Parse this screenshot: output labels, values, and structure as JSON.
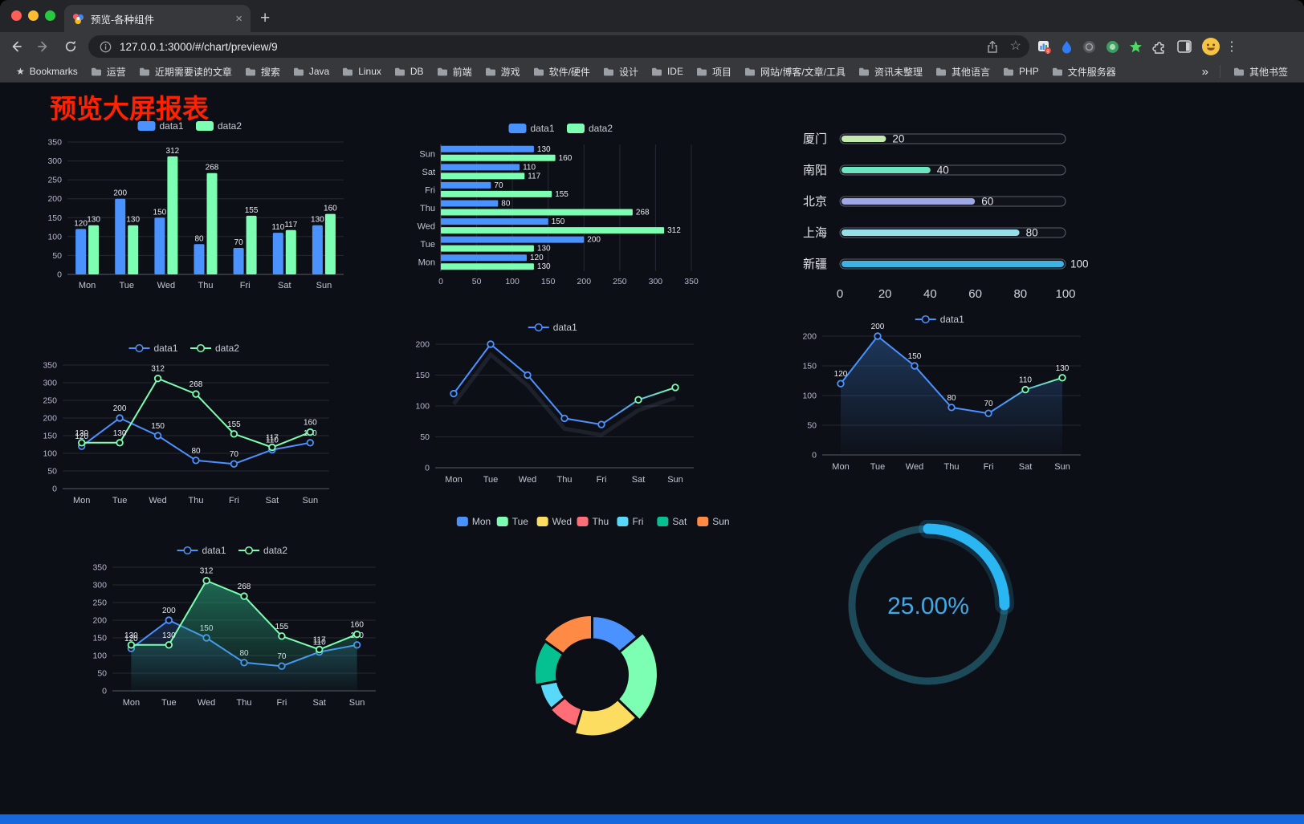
{
  "browser": {
    "tab": {
      "title": "预览-各种组件"
    },
    "icons": {
      "new_tab": "+",
      "close_tab": "×",
      "back": "←",
      "forward": "→",
      "reload": "⟳",
      "star": "☆",
      "menu": "⋮",
      "overflow": "»"
    },
    "url": "127.0.0.1:3000/#/chart/preview/9",
    "bookmarks": {
      "star_label": "Bookmarks",
      "folders": [
        "运营",
        "近期需要读的文章",
        "搜索",
        "Java",
        "Linux",
        "DB",
        "前端",
        "游戏",
        "软件/硬件",
        "设计",
        "IDE",
        "项目",
        "网站/博客/文章/工具",
        "资讯未整理",
        "其他语言",
        "PHP",
        "文件服务器"
      ],
      "other_bookmarks": "其他书签"
    }
  },
  "page": {
    "title": "预览大屏报表",
    "title_color": "#ff2200",
    "background": "#0d0f16",
    "footer_color": "#1668dd"
  },
  "chart_data": [
    {
      "type": "bar",
      "categories": [
        "Mon",
        "Tue",
        "Wed",
        "Thu",
        "Fri",
        "Sat",
        "Sun"
      ],
      "ylim": [
        0,
        350
      ],
      "ystep": 50,
      "series": [
        {
          "name": "data1",
          "color": "#4992ff",
          "values": [
            120,
            200,
            150,
            80,
            70,
            110,
            130
          ]
        },
        {
          "name": "data2",
          "color": "#7cffb2",
          "values": [
            130,
            130,
            312,
            268,
            155,
            117,
            160
          ]
        }
      ],
      "legend_position": "top"
    },
    {
      "type": "hbar",
      "categories": [
        "Mon",
        "Tue",
        "Wed",
        "Thu",
        "Fri",
        "Sat",
        "Sun"
      ],
      "xlim": [
        0,
        350
      ],
      "xstep": 50,
      "series": [
        {
          "name": "data1",
          "color": "#4992ff",
          "values": [
            120,
            200,
            150,
            80,
            70,
            110,
            130
          ]
        },
        {
          "name": "data2",
          "color": "#7cffb2",
          "values": [
            130,
            130,
            312,
            268,
            155,
            117,
            160
          ]
        }
      ],
      "legend_position": "top"
    },
    {
      "type": "capsule",
      "axis_ticks": [
        0,
        20,
        40,
        60,
        80,
        100
      ],
      "items": [
        {
          "label": "厦门",
          "value": 20,
          "color": "#c4ebad"
        },
        {
          "label": "南阳",
          "value": 40,
          "color": "#6be6c1"
        },
        {
          "label": "北京",
          "value": 60,
          "color": "#a0a7e6"
        },
        {
          "label": "上海",
          "value": 80,
          "color": "#96dee8"
        },
        {
          "label": "新疆",
          "value": 100,
          "color": "#3fb1e3"
        }
      ]
    },
    {
      "type": "line",
      "categories": [
        "Mon",
        "Tue",
        "Wed",
        "Thu",
        "Fri",
        "Sat",
        "Sun"
      ],
      "ylim": [
        0,
        350
      ],
      "ystep": 50,
      "series": [
        {
          "name": "data1",
          "color": "#4992ff",
          "values": [
            120,
            200,
            150,
            80,
            70,
            110,
            130
          ],
          "labels": true
        },
        {
          "name": "data2",
          "color": "#7cffb2",
          "values": [
            130,
            130,
            312,
            268,
            155,
            117,
            160
          ],
          "labels": true
        }
      ]
    },
    {
      "type": "line",
      "categories": [
        "Mon",
        "Tue",
        "Wed",
        "Thu",
        "Fri",
        "Sat",
        "Sun"
      ],
      "ylim": [
        0,
        200
      ],
      "ystep": 50,
      "shadow": true,
      "series": [
        {
          "name": "data1",
          "color": "#4992ff",
          "gradient": "#7cffb2",
          "values": [
            120,
            200,
            150,
            80,
            70,
            110,
            130
          ]
        }
      ]
    },
    {
      "type": "line",
      "categories": [
        "Mon",
        "Tue",
        "Wed",
        "Thu",
        "Fri",
        "Sat",
        "Sun"
      ],
      "ylim": [
        0,
        200
      ],
      "ystep": 50,
      "series": [
        {
          "name": "data1",
          "color": "#4992ff",
          "gradient": "#7cffb2",
          "area": "#2e5f9e",
          "area_opacity": 0.5,
          "values": [
            120,
            200,
            150,
            80,
            70,
            110,
            130
          ],
          "labels": true
        }
      ]
    },
    {
      "type": "line",
      "categories": [
        "Mon",
        "Tue",
        "Wed",
        "Thu",
        "Fri",
        "Sat",
        "Sun"
      ],
      "ylim": [
        0,
        350
      ],
      "ystep": 50,
      "series": [
        {
          "name": "data1",
          "color": "#4992ff",
          "area": "#3566b8",
          "area_opacity": 0.28,
          "values": [
            120,
            200,
            150,
            80,
            70,
            110,
            130
          ],
          "labels": true
        },
        {
          "name": "data2",
          "color": "#7cffb2",
          "area": "#2fbf8f",
          "area_opacity": 0.5,
          "values": [
            130,
            130,
            312,
            268,
            155,
            117,
            160
          ],
          "labels": true
        }
      ]
    },
    {
      "type": "donut",
      "legend": [
        "Mon",
        "Tue",
        "Wed",
        "Thu",
        "Fri",
        "Sat",
        "Sun"
      ],
      "values": [
        120,
        200,
        150,
        80,
        70,
        110,
        130
      ],
      "colors": [
        "#4992ff",
        "#7cffb2",
        "#fddd60",
        "#ff6e76",
        "#58d9f9",
        "#05c091",
        "#ff8a45"
      ]
    },
    {
      "type": "gauge",
      "value": 25,
      "display": "25.00%",
      "progress_color": "#29b6f2",
      "track_color": "#1d4a59",
      "text_color": "#3fa9e8"
    }
  ]
}
